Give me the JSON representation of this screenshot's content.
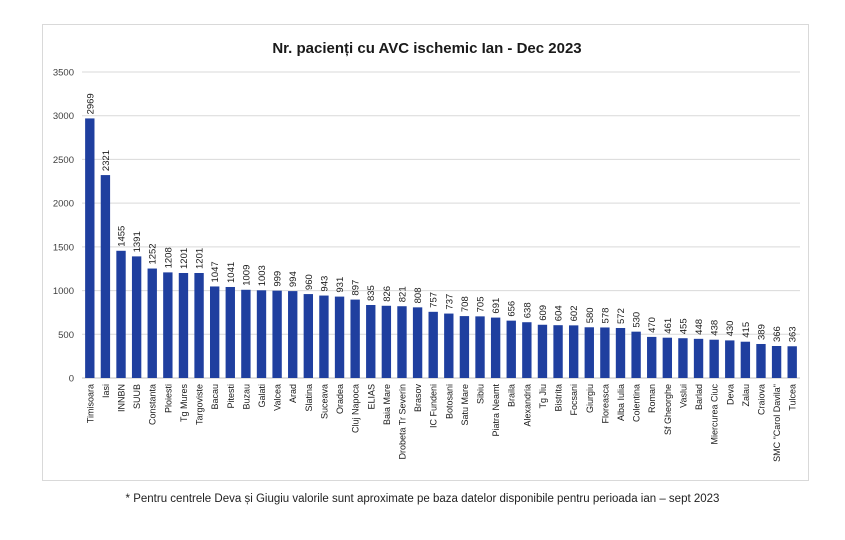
{
  "chart_data": {
    "type": "bar",
    "title": "Nr. pacienți cu AVC ischemic Ian - Dec 2023",
    "categories": [
      "Timisoara",
      "Iasi",
      "INNBN",
      "SUUB",
      "Constanta",
      "Ploiesti",
      "Tg Mures",
      "Targoviste",
      "Bacau",
      "Pitesti",
      "Buzau",
      "Galati",
      "Valcea",
      "Arad",
      "Slatina",
      "Suceava",
      "Oradea",
      "Cluj Napoca",
      "ELIAS",
      "Baia Mare",
      "Drobeta Tr Severin",
      "Brasov",
      "IC Fundeni",
      "Botosani",
      "Satu Mare",
      "Sibiu",
      "Piatra Neamt",
      "Braila",
      "Alexandria",
      "Tg Jiu",
      "Bistrita",
      "Focsani",
      "Giurgiu",
      "Floreasca",
      "Alba Iulia",
      "Colentina",
      "Roman",
      "Sf Gheorghe",
      "Vaslui",
      "Barlad",
      "Miercurea Ciuc",
      "Deva",
      "Zalau",
      "Craiova",
      "SMC \"Carol Davila\"",
      "Tulcea"
    ],
    "values": [
      2969,
      2321,
      1455,
      1391,
      1252,
      1208,
      1201,
      1201,
      1047,
      1041,
      1009,
      1003,
      999,
      994,
      960,
      943,
      931,
      897,
      835,
      826,
      821,
      808,
      757,
      737,
      708,
      705,
      691,
      656,
      638,
      609,
      604,
      602,
      580,
      578,
      572,
      530,
      470,
      461,
      455,
      448,
      438,
      430,
      415,
      389,
      366,
      363
    ],
    "yticks": [
      "0",
      "500",
      "1000",
      "1500",
      "2000",
      "2500",
      "3000",
      "3500"
    ],
    "ylim": [
      0,
      3500
    ],
    "grid": true,
    "bar_color": "#1f3f9f",
    "xlabel": "",
    "ylabel": ""
  },
  "footnote": "* Pentru centrele Deva și Giugiu valorile sunt aproximate pe baza datelor disponibile pentru perioada ian – sept 2023"
}
